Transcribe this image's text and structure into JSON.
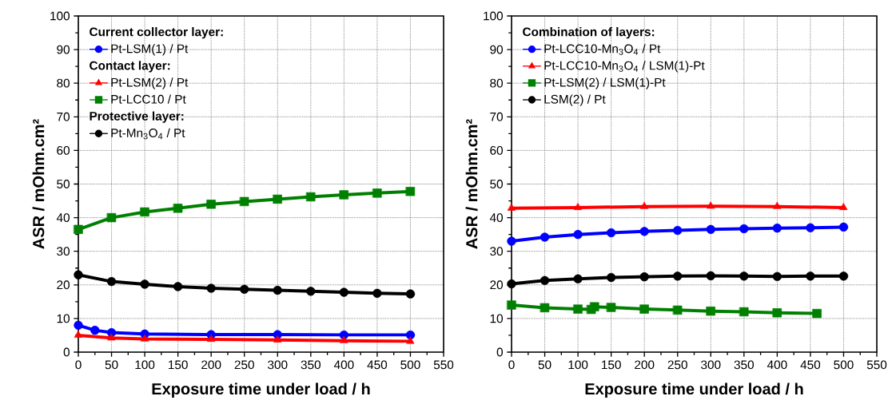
{
  "chart_data": [
    {
      "type": "line",
      "xlabel": "Exposure time under load / h",
      "ylabel": "ASR / mOhm.cm²",
      "xlim": [
        0,
        550
      ],
      "ylim": [
        0,
        100
      ],
      "xticks": [
        0,
        50,
        100,
        150,
        200,
        250,
        300,
        350,
        400,
        450,
        500,
        550
      ],
      "yticks": [
        0,
        10,
        20,
        30,
        40,
        50,
        60,
        70,
        80,
        90,
        100
      ],
      "grid": true,
      "legend": "top left",
      "line_style": "solid",
      "annotations": [
        "Current collector layer:",
        "Contact layer:",
        "Protective layer:"
      ],
      "series": [
        {
          "name": "Pt-LSM(1) / Pt",
          "color": "#0000ff",
          "marker": "circle",
          "x": [
            0,
            25,
            50,
            100,
            200,
            300,
            400,
            500
          ],
          "values": [
            8,
            6.5,
            5.8,
            5.4,
            5.2,
            5.2,
            5.1,
            5.1
          ]
        },
        {
          "name": "Pt-LSM(2) / Pt",
          "color": "#ff0000",
          "marker": "triangle",
          "x": [
            0,
            50,
            100,
            200,
            300,
            400,
            500
          ],
          "values": [
            5,
            4.2,
            3.9,
            3.8,
            3.6,
            3.4,
            3.2
          ]
        },
        {
          "name": "Pt-LCC10 / Pt",
          "color": "#008000",
          "marker": "square",
          "x": [
            0,
            50,
            100,
            150,
            200,
            250,
            300,
            350,
            400,
            450,
            500
          ],
          "values": [
            36.5,
            40,
            41.7,
            42.8,
            44,
            44.8,
            45.5,
            46.2,
            46.8,
            47.3,
            47.8
          ]
        },
        {
          "name": "Pt-Mn$_{3}$O$_{4}$ / Pt",
          "color": "#000000",
          "marker": "circle",
          "x": [
            0,
            50,
            100,
            150,
            200,
            250,
            300,
            350,
            400,
            450,
            500
          ],
          "values": [
            23,
            21,
            20.2,
            19.5,
            19,
            18.7,
            18.4,
            18.1,
            17.8,
            17.5,
            17.3
          ]
        }
      ]
    },
    {
      "type": "line",
      "xlabel": "Exposure time under load / h",
      "ylabel": "ASR / mOhm.cm²",
      "xlim": [
        0,
        550
      ],
      "ylim": [
        0,
        100
      ],
      "xticks": [
        0,
        50,
        100,
        150,
        200,
        250,
        300,
        350,
        400,
        450,
        500,
        550
      ],
      "yticks": [
        0,
        10,
        20,
        30,
        40,
        50,
        60,
        70,
        80,
        90,
        100
      ],
      "grid": true,
      "legend": "top left",
      "line_style": "solid",
      "legend_title": "Combination of layers:",
      "series": [
        {
          "name": "Pt-LCC10-Mn$_{3}$O$_{4}$ / Pt",
          "color": "#0000ff",
          "marker": "circle",
          "x": [
            0,
            50,
            100,
            150,
            200,
            250,
            300,
            350,
            400,
            450,
            500
          ],
          "values": [
            33,
            34.2,
            35,
            35.5,
            35.9,
            36.2,
            36.5,
            36.7,
            36.9,
            37,
            37.2
          ]
        },
        {
          "name": "Pt-LCC10-Mn$_{3}$O$_{4}$ / LSM(1)-Pt",
          "color": "#ff0000",
          "marker": "triangle",
          "x": [
            0,
            100,
            200,
            300,
            400,
            500
          ],
          "values": [
            42.8,
            43,
            43.3,
            43.4,
            43.3,
            43
          ]
        },
        {
          "name": "Pt-LSM(2) / LSM(1)-Pt",
          "color": "#008000",
          "marker": "square",
          "x": [
            0,
            50,
            100,
            120,
            125,
            150,
            200,
            250,
            300,
            350,
            400,
            460
          ],
          "values": [
            14,
            13.2,
            12.8,
            12.7,
            13.5,
            13.3,
            12.8,
            12.5,
            12.2,
            12,
            11.7,
            11.5
          ]
        },
        {
          "name": "LSM(2) / Pt",
          "color": "#000000",
          "marker": "circle",
          "x": [
            0,
            50,
            100,
            150,
            200,
            250,
            300,
            350,
            400,
            450,
            500
          ],
          "values": [
            20.3,
            21.3,
            21.8,
            22.2,
            22.4,
            22.6,
            22.7,
            22.6,
            22.5,
            22.6,
            22.6
          ]
        }
      ]
    }
  ]
}
